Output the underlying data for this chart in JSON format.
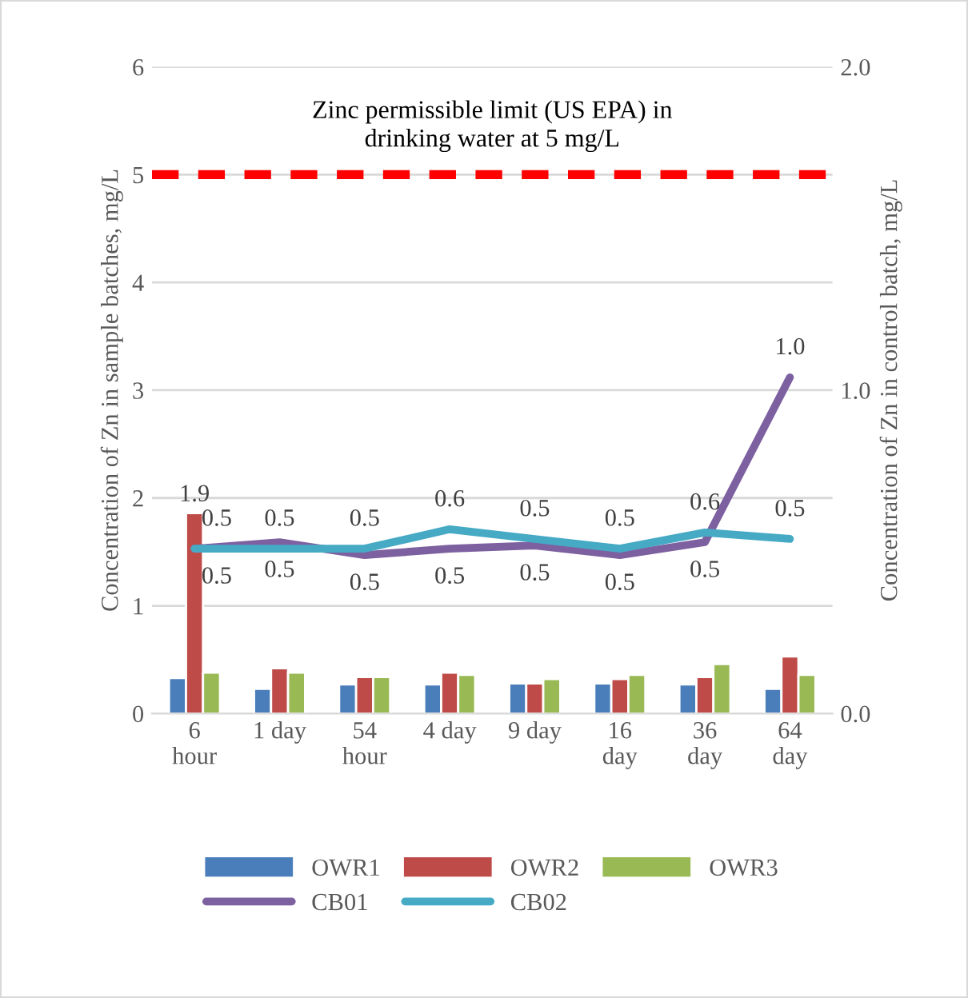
{
  "chart_data": {
    "type": "bar",
    "categories": [
      "6\nhour",
      "1 day",
      "54\nhour",
      "4 day",
      "9 day",
      "16\nday",
      "36\nday",
      "64\nday"
    ],
    "ylabel": "Concentration of Zn in sample batches, mg/L",
    "y2label": "Concentration of Zn in control batch, mg/L",
    "ylim": [
      0,
      6
    ],
    "yticks": [
      0,
      1,
      2,
      3,
      4,
      5,
      6
    ],
    "y2lim": [
      0,
      2
    ],
    "y2ticks": [
      {
        "value": 0,
        "label": "0.0"
      },
      {
        "value": 1,
        "label": "1.0"
      },
      {
        "value": 2,
        "label": "2.0"
      }
    ],
    "grid": "y",
    "legend": "bottom",
    "ref_lines": [
      {
        "axis": "y",
        "value": 5,
        "label": "Zinc permissible limit (US EPA) in\ndrinking water at 5 mg/L",
        "color": "#ff0000",
        "line_style": "dashed"
      }
    ],
    "series": [
      {
        "name": "OWR1",
        "color": "#4a7ebb",
        "values": [
          0.33,
          0.23,
          0.27,
          0.27,
          0.28,
          0.28,
          0.27,
          0.23
        ]
      },
      {
        "name": "OWR2",
        "color": "#be4b48",
        "values": [
          1.86,
          0.42,
          0.34,
          0.38,
          0.28,
          0.32,
          0.34,
          0.53
        ],
        "value_labels": [
          "1.9",
          null,
          null,
          null,
          null,
          null,
          null,
          null
        ]
      },
      {
        "name": "OWR3",
        "color": "#98b954",
        "values": [
          0.38,
          0.38,
          0.34,
          0.36,
          0.32,
          0.36,
          0.46,
          0.36
        ]
      },
      {
        "name": "CB01",
        "type": "line",
        "axis": "y2",
        "color": "#7d60a0",
        "values": [
          0.51,
          0.53,
          0.49,
          0.51,
          0.52,
          0.49,
          0.53,
          1.04
        ],
        "value_labels": [
          "0.5",
          "0.5",
          "0.5",
          "0.5",
          "0.5",
          "0.5",
          "0.5",
          "1.0"
        ]
      },
      {
        "name": "CB02",
        "type": "line",
        "axis": "y2",
        "color": "#46aac5",
        "values": [
          0.51,
          0.51,
          0.51,
          0.57,
          0.54,
          0.51,
          0.56,
          0.54
        ],
        "value_labels": [
          "0.5",
          "0.5",
          "0.5",
          "0.6",
          "0.5",
          "0.5",
          "0.6",
          "0.5"
        ]
      }
    ]
  }
}
